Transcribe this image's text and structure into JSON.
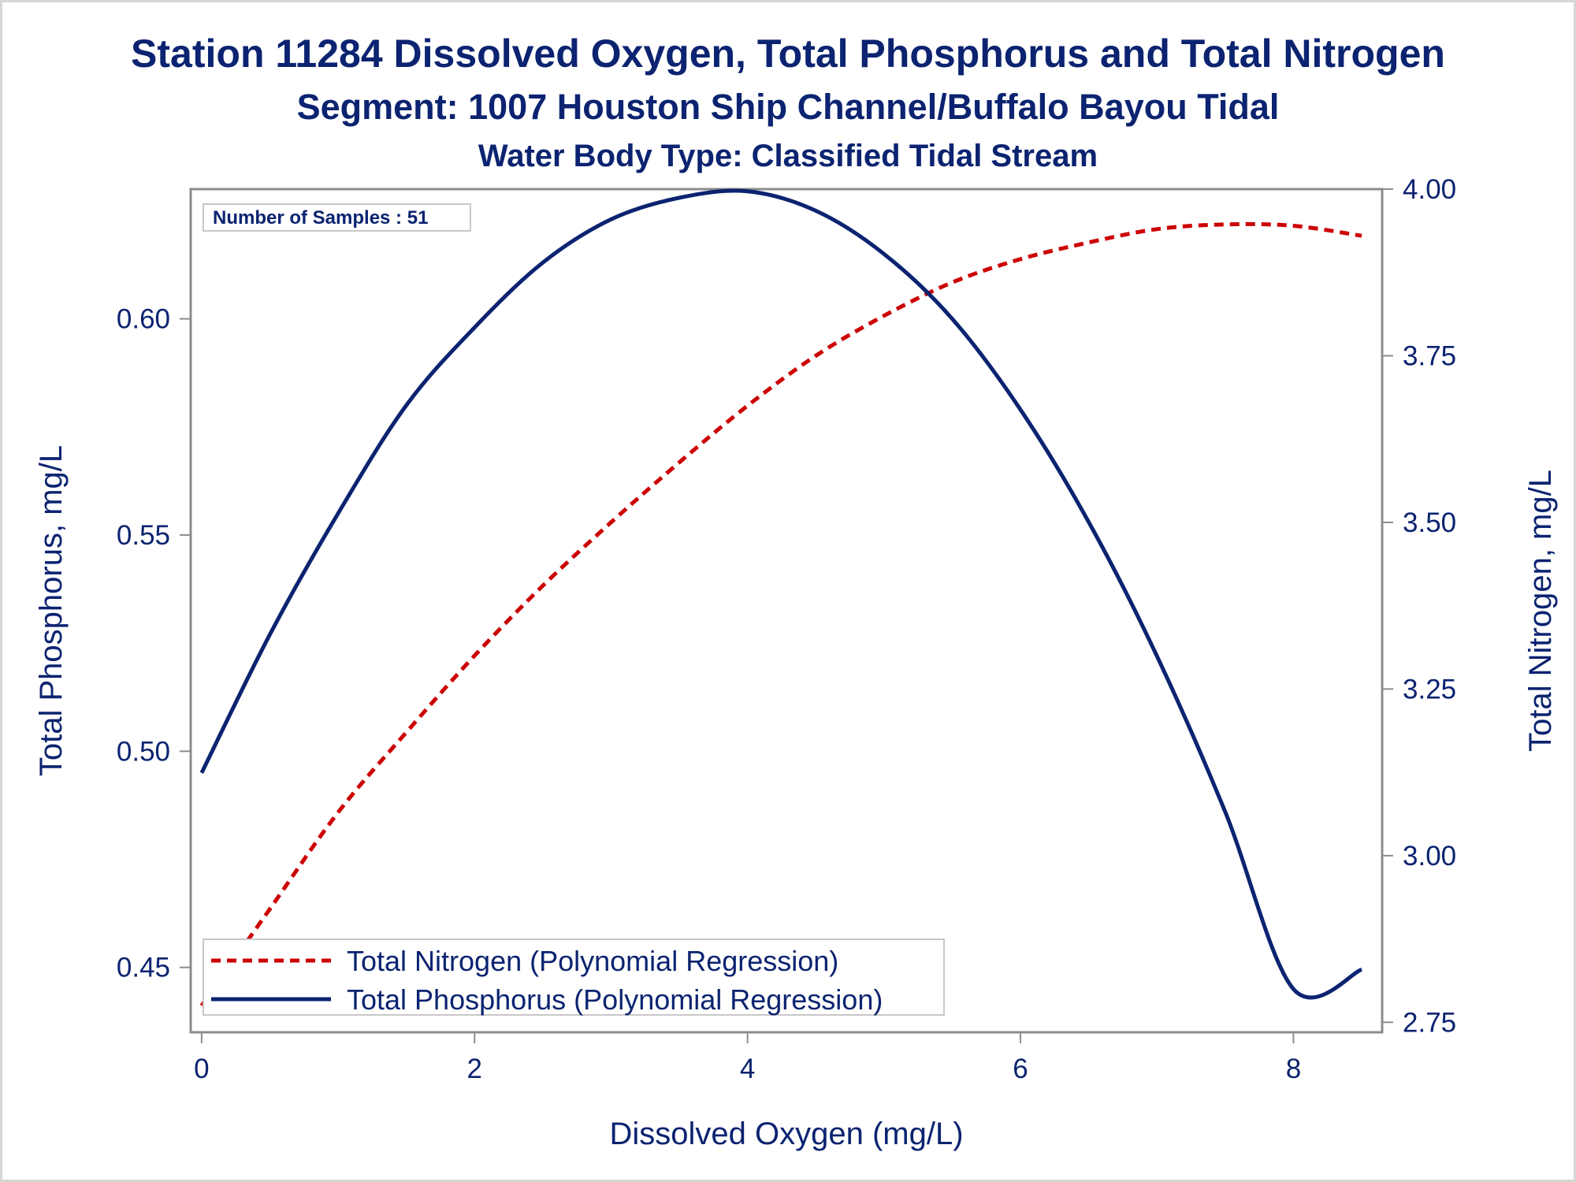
{
  "titles": {
    "line1": "Station 11284  Dissolved Oxygen, Total Phosphorus and Total Nitrogen",
    "line2": "Segment: 1007  Houston Ship Channel/Buffalo Bayou Tidal",
    "line3": "Water Body Type: Classified Tidal Stream"
  },
  "inset": {
    "text": "Number of Samples : 51"
  },
  "colors": {
    "text": "#0b2370",
    "phosphorus": "#0b2370",
    "nitrogen": "#cc0000",
    "axis": "#8c8c8c"
  },
  "chart_data": {
    "type": "line",
    "xlabel": "Dissolved Oxygen (mg/L)",
    "ylabel_left": "Total Phosphorus, mg/L",
    "ylabel_right": "Total Nitrogen, mg/L",
    "xlim": [
      -0.08,
      8.65
    ],
    "ylim_left": [
      0.435,
      0.63
    ],
    "ylim_right": [
      2.735,
      4.0
    ],
    "x_ticks": [
      0,
      2,
      4,
      6,
      8
    ],
    "x_tick_labels": [
      "0",
      "2",
      "4",
      "6",
      "8"
    ],
    "y_left_ticks": [
      0.45,
      0.5,
      0.55,
      0.6
    ],
    "y_left_tick_labels": [
      "0.45",
      "0.50",
      "0.55",
      "0.60"
    ],
    "y_right_ticks": [
      2.75,
      3.0,
      3.25,
      3.5,
      3.75,
      4.0
    ],
    "y_right_tick_labels": [
      "2.75",
      "3.00",
      "3.25",
      "3.50",
      "3.75",
      "4.00"
    ],
    "legend_placement": "bottom-left",
    "grid": false,
    "series": [
      {
        "name": "Total Nitrogen (Polynomial Regression)",
        "axis": "right",
        "color": "#cc0000",
        "style": "dashed",
        "x": [
          0,
          0.5,
          1,
          1.5,
          2,
          2.5,
          3,
          3.5,
          4,
          4.5,
          5,
          5.5,
          6,
          6.5,
          7,
          7.5,
          8,
          8.5
        ],
        "y": [
          2.775,
          2.92,
          3.065,
          3.185,
          3.3,
          3.405,
          3.5,
          3.59,
          3.675,
          3.75,
          3.81,
          3.86,
          3.895,
          3.92,
          3.94,
          3.947,
          3.945,
          3.93
        ]
      },
      {
        "name": "Total Phosphorus (Polynomial Regression)",
        "axis": "left",
        "color": "#0b2370",
        "style": "solid",
        "x": [
          0,
          0.5,
          1,
          1.5,
          2,
          2.5,
          3,
          3.5,
          4,
          4.5,
          5,
          5.5,
          6,
          6.5,
          7,
          7.5,
          8,
          8.5
        ],
        "y": [
          0.495,
          0.527,
          0.555,
          0.58,
          0.598,
          0.613,
          0.623,
          0.628,
          0.6295,
          0.625,
          0.615,
          0.6,
          0.579,
          0.553,
          0.522,
          0.486,
          0.445,
          0.4495
        ]
      }
    ]
  }
}
